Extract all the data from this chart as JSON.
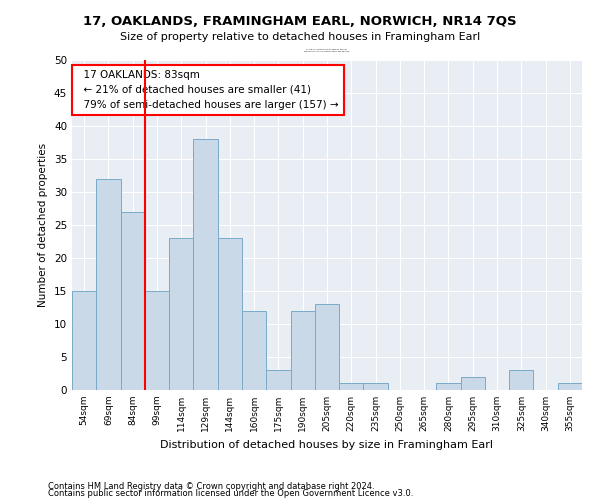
{
  "title": "17, OAKLANDS, FRAMINGHAM EARL, NORWICH, NR14 7QS",
  "subtitle": "Size of property relative to detached houses in Framingham Earl",
  "xlabel": "Distribution of detached houses by size in Framingham Earl",
  "ylabel": "Number of detached properties",
  "footnote1": "Contains HM Land Registry data © Crown copyright and database right 2024.",
  "footnote2": "Contains public sector information licensed under the Open Government Licence v3.0.",
  "annotation_title": "17 OAKLANDS: 83sqm",
  "annotation_line1": "← 21% of detached houses are smaller (41)",
  "annotation_line2": "79% of semi-detached houses are larger (157) →",
  "bar_color": "#c9d9e8",
  "bar_edge_color": "#7aaac8",
  "marker_color": "red",
  "annotation_box_color": "red",
  "background_color": "#e8eef4",
  "categories": [
    "54sqm",
    "69sqm",
    "84sqm",
    "99sqm",
    "114sqm",
    "129sqm",
    "144sqm",
    "160sqm",
    "175sqm",
    "190sqm",
    "205sqm",
    "220sqm",
    "235sqm",
    "250sqm",
    "265sqm",
    "280sqm",
    "295sqm",
    "310sqm",
    "325sqm",
    "340sqm",
    "355sqm"
  ],
  "values": [
    15,
    32,
    27,
    15,
    23,
    38,
    23,
    12,
    3,
    12,
    13,
    1,
    1,
    0,
    0,
    1,
    2,
    0,
    3,
    0,
    1
  ],
  "ylim": [
    0,
    50
  ],
  "yticks": [
    0,
    5,
    10,
    15,
    20,
    25,
    30,
    35,
    40,
    45,
    50
  ],
  "marker_after_index": 2,
  "figsize": [
    6.0,
    5.0
  ],
  "dpi": 100
}
